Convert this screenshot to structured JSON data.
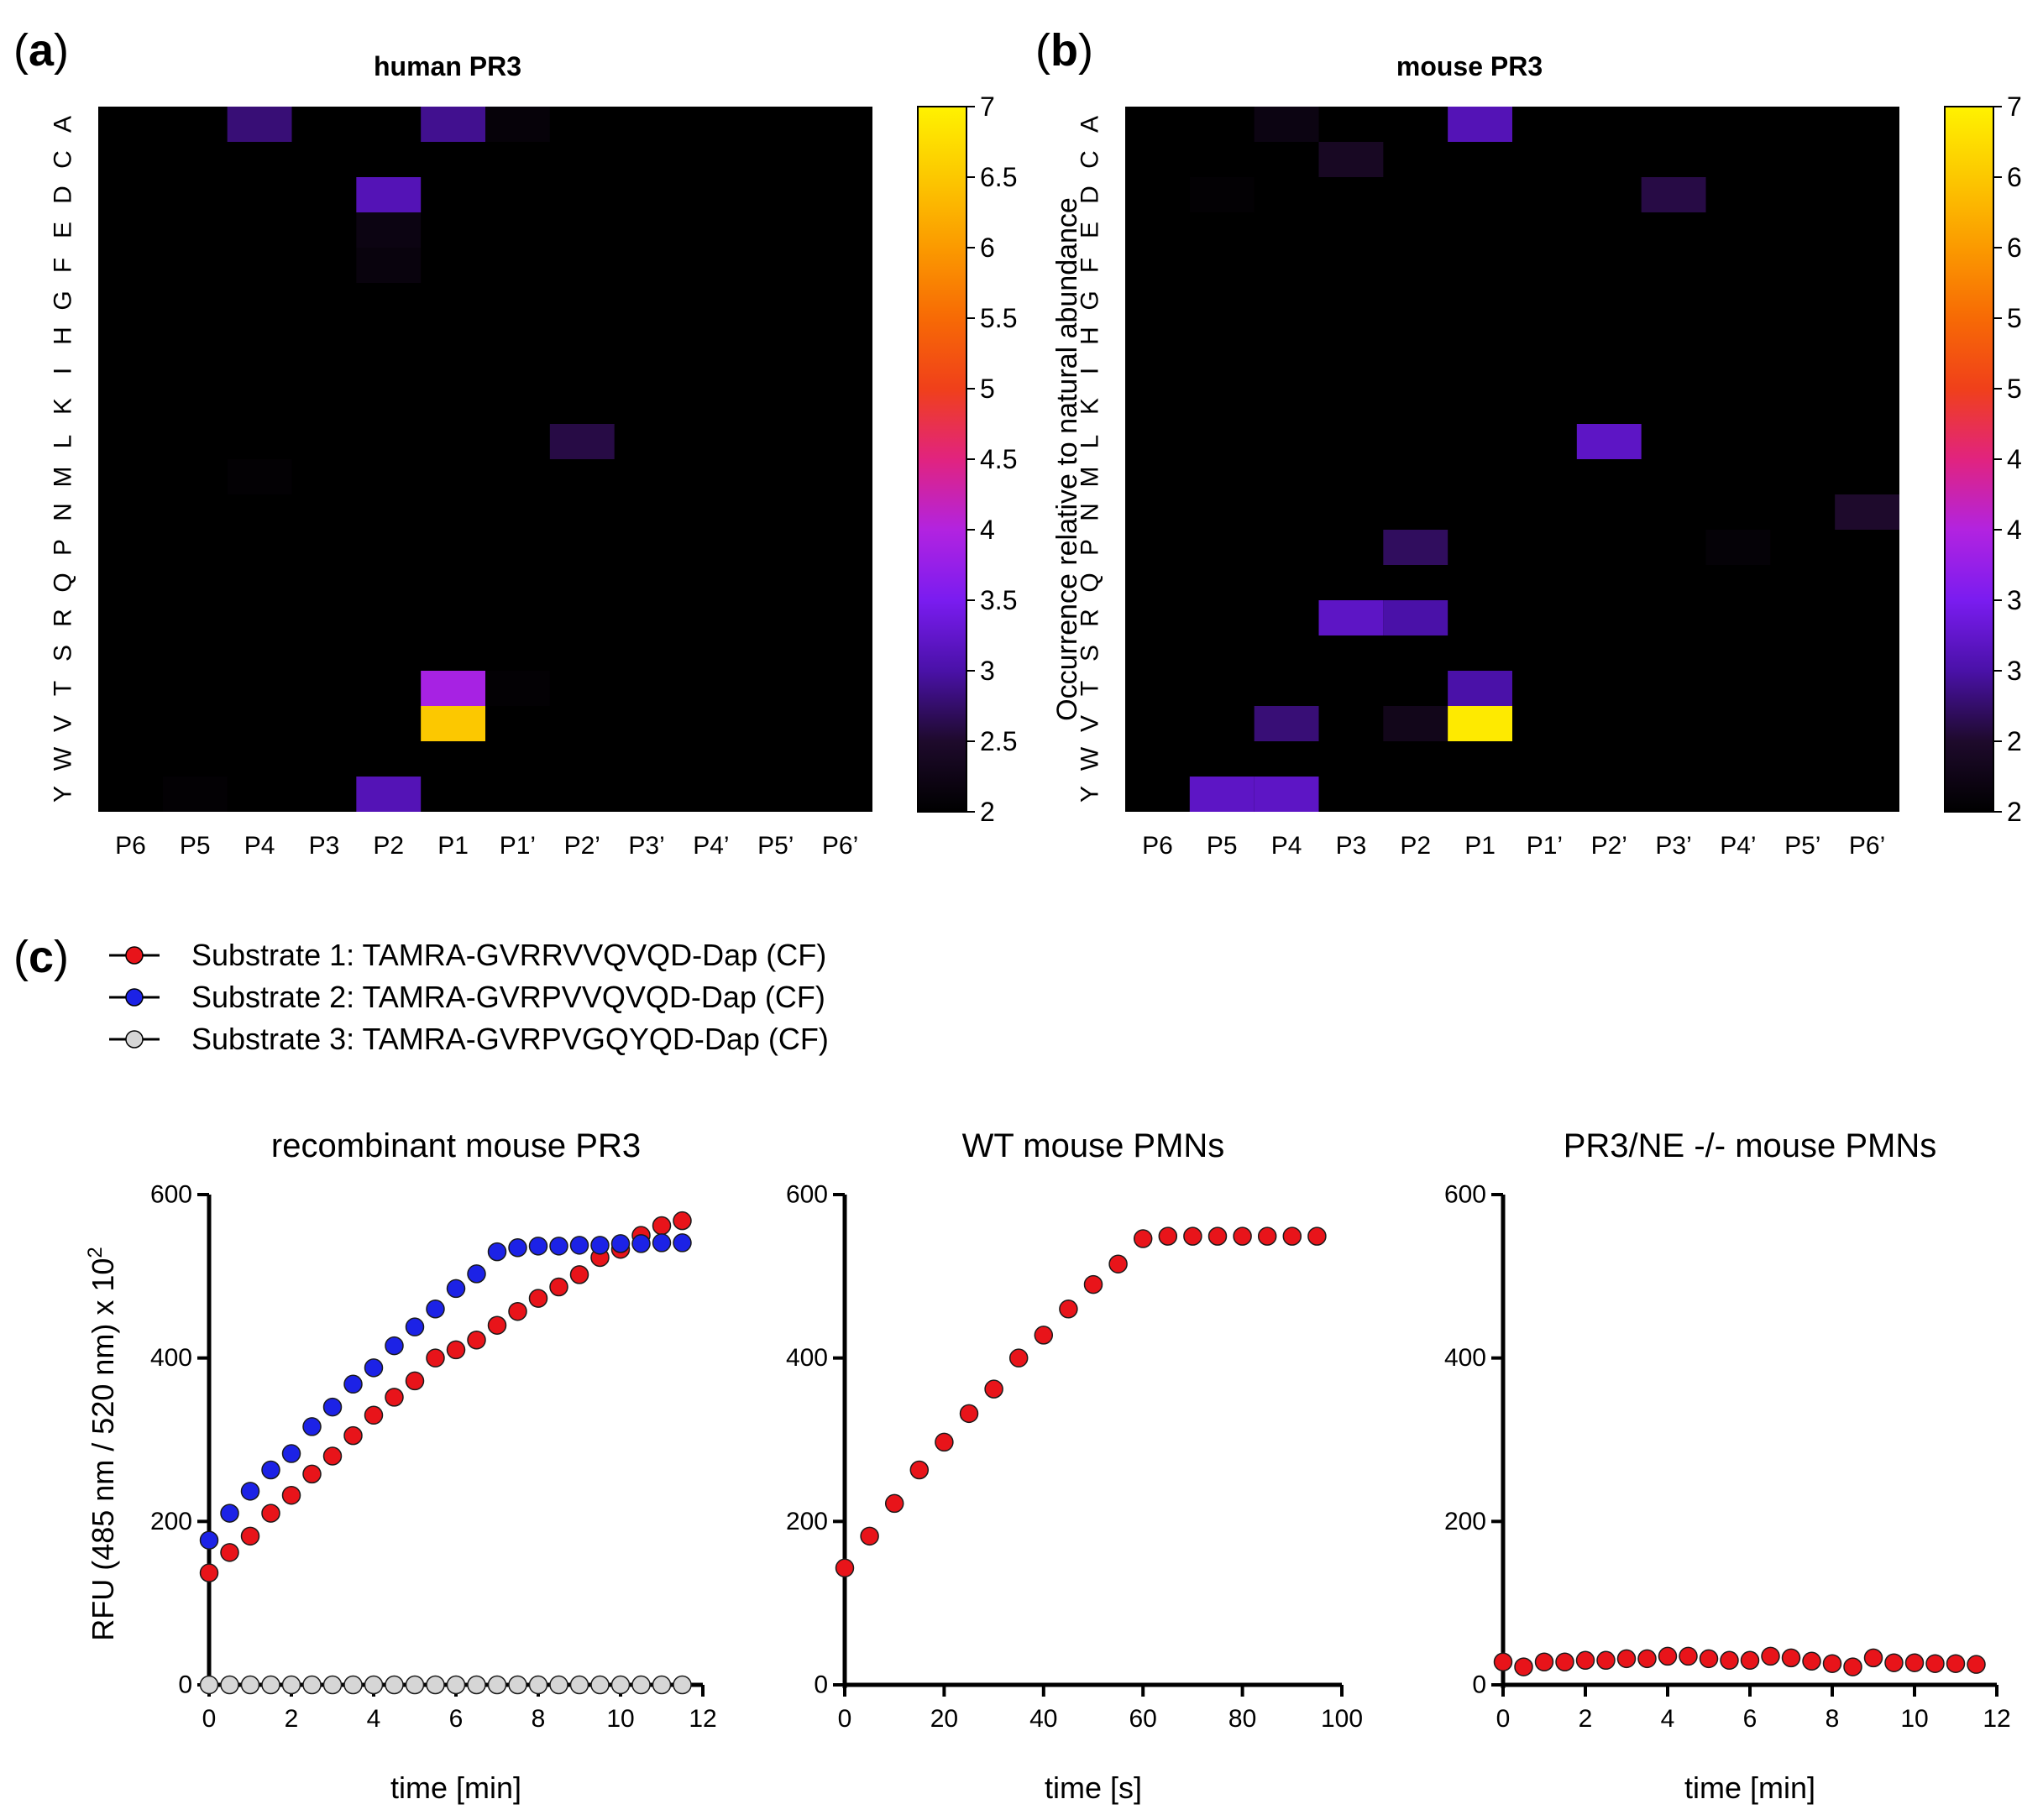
{
  "panel_labels": {
    "a": "a",
    "b": "b",
    "c": "c"
  },
  "heatmap_common": {
    "y_labels": [
      "A",
      "C",
      "D",
      "E",
      "F",
      "G",
      "H",
      "I",
      "K",
      "L",
      "M",
      "N",
      "P",
      "Q",
      "R",
      "S",
      "T",
      "V",
      "W",
      "Y"
    ],
    "x_labels": [
      "P6",
      "P5",
      "P4",
      "P3",
      "P2",
      "P1",
      "P1’",
      "P2’",
      "P3’",
      "P4’",
      "P5’",
      "P6’"
    ],
    "colorbar_label": "Occurrence relative to natural abundance",
    "colorbar_ticks": [
      "2",
      "2.5",
      "3",
      "3.5",
      "4",
      "4.5",
      "5",
      "5.5",
      "6",
      "6.5",
      "7"
    ],
    "colorbar_range": [
      2,
      7
    ],
    "colormap": [
      "#000000",
      "#1e0a2c",
      "#4a11a8",
      "#7a1cf0",
      "#b223e0",
      "#e1237f",
      "#f0401a",
      "#f76a05",
      "#fb9a00",
      "#fcc800",
      "#fff200"
    ]
  },
  "legend": {
    "s1": "Substrate 1: TAMRA-GVRRVVQVQD-Dap (CF)",
    "s2": "Substrate 2: TAMRA-GVRPVVQVQD-Dap (CF)",
    "s3": "Substrate 3: TAMRA-GVRPVGQYQD-Dap (CF)",
    "colors": {
      "s1": "#e8141a",
      "s2": "#1c22e6",
      "s3": "#d6d6d6"
    }
  },
  "ylabel_main": "RFU (485 nm / 520 nm) x 10",
  "ylabel_sup": "2",
  "chart_data": [
    {
      "type": "heatmap",
      "id": "a",
      "title": "human PR3",
      "cells": [
        {
          "row": "A",
          "col": "P4",
          "value": 2.8
        },
        {
          "row": "A",
          "col": "P1",
          "value": 2.9
        },
        {
          "row": "A",
          "col": "P1’",
          "value": 2.1
        },
        {
          "row": "D",
          "col": "P2",
          "value": 3.1
        },
        {
          "row": "E",
          "col": "P2",
          "value": 2.2
        },
        {
          "row": "F",
          "col": "P2",
          "value": 2.15
        },
        {
          "row": "L",
          "col": "P2’",
          "value": 2.6
        },
        {
          "row": "M",
          "col": "P4",
          "value": 2.05
        },
        {
          "row": "T",
          "col": "P1",
          "value": 3.9
        },
        {
          "row": "T",
          "col": "P1’",
          "value": 2.05
        },
        {
          "row": "V",
          "col": "P1",
          "value": 6.5
        },
        {
          "row": "Y",
          "col": "P5",
          "value": 2.05
        },
        {
          "row": "Y",
          "col": "P2",
          "value": 3.1
        }
      ]
    },
    {
      "type": "heatmap",
      "id": "b",
      "title": "mouse PR3",
      "cells": [
        {
          "row": "A",
          "col": "P4",
          "value": 2.2
        },
        {
          "row": "A",
          "col": "P1",
          "value": 3.1
        },
        {
          "row": "C",
          "col": "P3",
          "value": 2.4
        },
        {
          "row": "D",
          "col": "P5",
          "value": 2.05
        },
        {
          "row": "D",
          "col": "P3’",
          "value": 2.6
        },
        {
          "row": "L",
          "col": "P2’",
          "value": 3.2
        },
        {
          "row": "N",
          "col": "P6’",
          "value": 2.5
        },
        {
          "row": "P",
          "col": "P2",
          "value": 2.7
        },
        {
          "row": "P",
          "col": "P4’",
          "value": 2.08
        },
        {
          "row": "R",
          "col": "P3",
          "value": 3.2
        },
        {
          "row": "R",
          "col": "P2",
          "value": 3.0
        },
        {
          "row": "T",
          "col": "P1",
          "value": 3.0
        },
        {
          "row": "V",
          "col": "P4",
          "value": 2.8
        },
        {
          "row": "V",
          "col": "P2",
          "value": 2.3
        },
        {
          "row": "V",
          "col": "P1",
          "value": 6.9
        },
        {
          "row": "Y",
          "col": "P5",
          "value": 3.2
        },
        {
          "row": "Y",
          "col": "P4",
          "value": 3.2
        }
      ]
    },
    {
      "type": "scatter",
      "id": "c1",
      "title": "recombinant mouse PR3",
      "xlabel": "time [min]",
      "ylabel": "RFU (485 nm / 520 nm) x 10^2",
      "xlim": [
        0,
        12
      ],
      "ylim": [
        0,
        600
      ],
      "xticks": [
        0,
        2,
        4,
        6,
        8,
        10,
        12
      ],
      "yticks": [
        0,
        200,
        400,
        600
      ],
      "series": [
        {
          "name": "Substrate 1",
          "key": "s1",
          "x": [
            0,
            0.5,
            1,
            1.5,
            2,
            2.5,
            3,
            3.5,
            4,
            4.5,
            5,
            5.5,
            6,
            6.5,
            7,
            7.5,
            8,
            8.5,
            9,
            9.5,
            10,
            10.5,
            11,
            11.5
          ],
          "y": [
            137,
            162,
            182,
            210,
            232,
            258,
            280,
            305,
            330,
            352,
            372,
            400,
            410,
            422,
            440,
            457,
            473,
            487,
            502,
            523,
            533,
            550,
            562,
            568
          ]
        },
        {
          "name": "Substrate 2",
          "key": "s2",
          "x": [
            0,
            0.5,
            1,
            1.5,
            2,
            2.5,
            3,
            3.5,
            4,
            4.5,
            5,
            5.5,
            6,
            6.5,
            7,
            7.5,
            8,
            8.5,
            9,
            9.5,
            10,
            10.5,
            11,
            11.5
          ],
          "y": [
            177,
            210,
            237,
            263,
            283,
            316,
            340,
            368,
            388,
            415,
            438,
            460,
            485,
            503,
            530,
            535,
            537,
            537,
            538,
            538,
            540,
            540,
            541,
            541
          ]
        },
        {
          "name": "Substrate 3",
          "key": "s3",
          "x": [
            0,
            0.5,
            1,
            1.5,
            2,
            2.5,
            3,
            3.5,
            4,
            4.5,
            5,
            5.5,
            6,
            6.5,
            7,
            7.5,
            8,
            8.5,
            9,
            9.5,
            10,
            10.5,
            11,
            11.5
          ],
          "y": [
            0,
            0,
            0,
            0,
            0,
            0,
            0,
            0,
            0,
            0,
            0,
            0,
            0,
            0,
            0,
            0,
            0,
            0,
            0,
            0,
            0,
            0,
            0,
            0
          ]
        }
      ]
    },
    {
      "type": "scatter",
      "id": "c2",
      "title": "WT mouse PMNs",
      "xlabel": "time [s]",
      "xlim": [
        0,
        100
      ],
      "ylim": [
        0,
        600
      ],
      "xticks": [
        0,
        20,
        40,
        60,
        80,
        100
      ],
      "yticks": [
        0,
        200,
        400,
        600
      ],
      "series": [
        {
          "name": "Substrate 1",
          "key": "s1",
          "x": [
            0,
            5,
            10,
            15,
            20,
            25,
            30,
            35,
            40,
            45,
            50,
            55,
            60,
            65,
            70,
            75,
            80,
            85,
            90,
            95
          ],
          "y": [
            143,
            182,
            222,
            263,
            297,
            332,
            362,
            400,
            428,
            460,
            490,
            515,
            546,
            549,
            549,
            549,
            549,
            549,
            549,
            549
          ]
        }
      ]
    },
    {
      "type": "scatter",
      "id": "c3",
      "title": "PR3/NE -/- mouse PMNs",
      "xlabel": "time [min]",
      "xlim": [
        0,
        12
      ],
      "ylim": [
        0,
        600
      ],
      "xticks": [
        0,
        2,
        4,
        6,
        8,
        10,
        12
      ],
      "yticks": [
        0,
        200,
        400,
        600
      ],
      "series": [
        {
          "name": "Substrate 1",
          "key": "s1",
          "x": [
            0,
            0.5,
            1,
            1.5,
            2,
            2.5,
            3,
            3.5,
            4,
            4.5,
            5,
            5.5,
            6,
            6.5,
            7,
            7.5,
            8,
            8.5,
            9,
            9.5,
            10,
            10.5,
            11,
            11.5
          ],
          "y": [
            28,
            22,
            28,
            28,
            30,
            30,
            32,
            32,
            35,
            35,
            32,
            30,
            30,
            35,
            33,
            29,
            26,
            22,
            33,
            27,
            27,
            26,
            26,
            25
          ]
        }
      ]
    }
  ]
}
